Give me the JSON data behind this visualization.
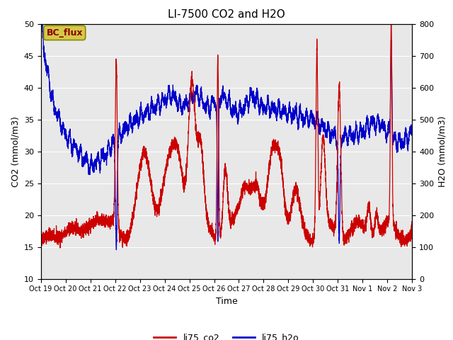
{
  "title": "LI-7500 CO2 and H2O",
  "xlabel": "Time",
  "ylabel_left": "CO2 (mmol/m3)",
  "ylabel_right": "H2O (mmol/m3)",
  "ylim_left": [
    10,
    50
  ],
  "ylim_right": [
    0,
    800
  ],
  "yticks_left": [
    10,
    15,
    20,
    25,
    30,
    35,
    40,
    45,
    50
  ],
  "yticks_right": [
    0,
    100,
    200,
    300,
    400,
    500,
    600,
    700,
    800
  ],
  "xtick_labels": [
    "Oct 19",
    "Oct 20",
    "Oct 21",
    "Oct 22",
    "Oct 23",
    "Oct 24",
    "Oct 25",
    "Oct 26",
    "Oct 27",
    "Oct 28",
    "Oct 29",
    "Oct 30",
    "Oct 31",
    "Nov 1",
    "Nov 2",
    "Nov 3"
  ],
  "color_co2": "#cc0000",
  "color_h2o": "#0000cc",
  "legend_label_co2": "li75_co2",
  "legend_label_h2o": "li75_h2o",
  "watermark_text": "BC_flux",
  "watermark_bg": "#d4c84a",
  "watermark_fg": "#8b0000",
  "background_color": "#e8e8e8",
  "title_fontsize": 11,
  "axis_fontsize": 9,
  "tick_fontsize": 8,
  "linewidth": 0.9
}
